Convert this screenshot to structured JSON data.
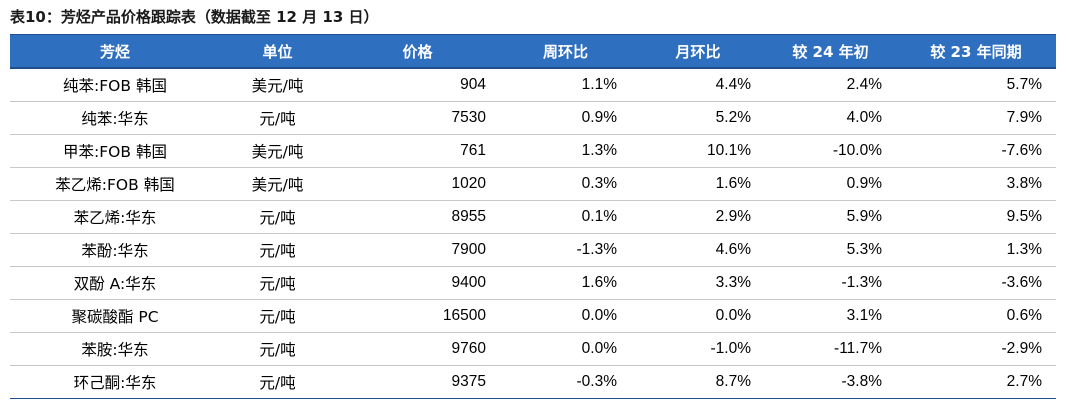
{
  "caption": "表10：芳烃产品价格跟踪表（数据截至 12 月 13 日）",
  "columns": [
    "芳烃",
    "单位",
    "价格",
    "周环比",
    "月环比",
    "较 24 年初",
    "较 23 年同期"
  ],
  "rows": [
    {
      "name": "纯苯:FOB 韩国",
      "unit": "美元/吨",
      "price": "904",
      "wow": "1.1%",
      "mom": "4.4%",
      "ytd": "2.4%",
      "yoy": "5.7%"
    },
    {
      "name": "纯苯:华东",
      "unit": "元/吨",
      "price": "7530",
      "wow": "0.9%",
      "mom": "5.2%",
      "ytd": "4.0%",
      "yoy": "7.9%"
    },
    {
      "name": "甲苯:FOB 韩国",
      "unit": "美元/吨",
      "price": "761",
      "wow": "1.3%",
      "mom": "10.1%",
      "ytd": "-10.0%",
      "yoy": "-7.6%"
    },
    {
      "name": "苯乙烯:FOB 韩国",
      "unit": "美元/吨",
      "price": "1020",
      "wow": "0.3%",
      "mom": "1.6%",
      "ytd": "0.9%",
      "yoy": "3.8%"
    },
    {
      "name": "苯乙烯:华东",
      "unit": "元/吨",
      "price": "8955",
      "wow": "0.1%",
      "mom": "2.9%",
      "ytd": "5.9%",
      "yoy": "9.5%"
    },
    {
      "name": "苯酚:华东",
      "unit": "元/吨",
      "price": "7900",
      "wow": "-1.3%",
      "mom": "4.6%",
      "ytd": "5.3%",
      "yoy": "1.3%"
    },
    {
      "name": "双酚 A:华东",
      "unit": "元/吨",
      "price": "9400",
      "wow": "1.6%",
      "mom": "3.3%",
      "ytd": "-1.3%",
      "yoy": "-3.6%"
    },
    {
      "name": "聚碳酸酯 PC",
      "unit": "元/吨",
      "price": "16500",
      "wow": "0.0%",
      "mom": "0.0%",
      "ytd": "3.1%",
      "yoy": "0.6%"
    },
    {
      "name": "苯胺:华东",
      "unit": "元/吨",
      "price": "9760",
      "wow": "0.0%",
      "mom": "-1.0%",
      "ytd": "-11.7%",
      "yoy": "-2.9%"
    },
    {
      "name": "环己酮:华东",
      "unit": "元/吨",
      "price": "9375",
      "wow": "-0.3%",
      "mom": "8.7%",
      "ytd": "-3.8%",
      "yoy": "2.7%"
    }
  ],
  "colors": {
    "header_bg": "#2f6fbf",
    "header_text": "#ffffff"
  }
}
